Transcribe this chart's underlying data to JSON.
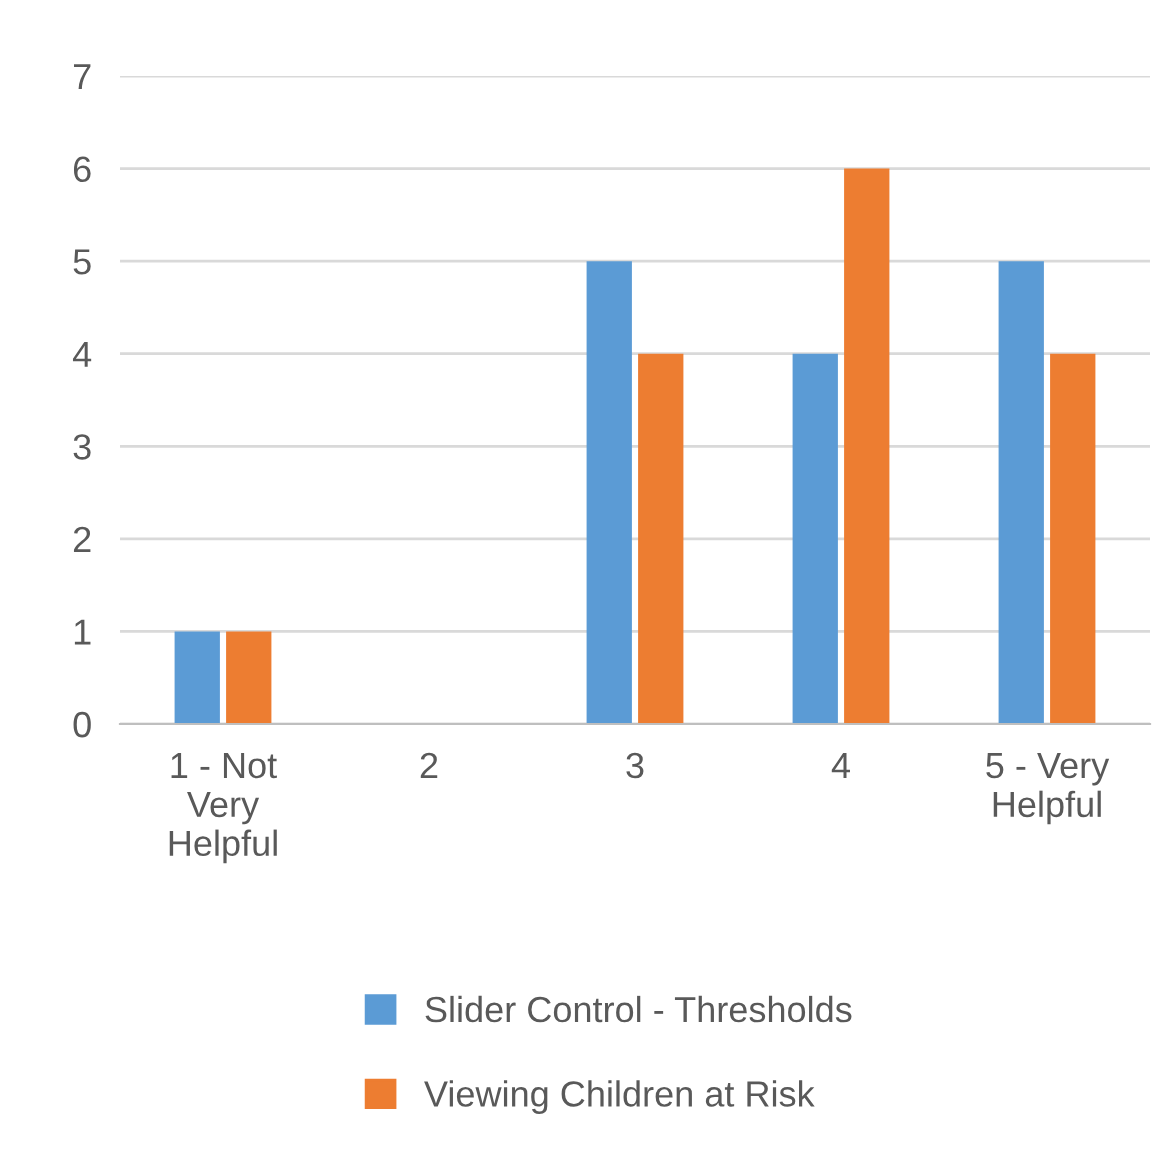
{
  "chart_data": {
    "type": "bar",
    "categories": [
      "1 - Not Very Helpful",
      "2",
      "3",
      "4",
      "5 - Very Helpful"
    ],
    "series": [
      {
        "name": "Slider Control - Thresholds",
        "color": "#5b9bd5",
        "values": [
          1,
          0,
          5,
          4,
          5
        ]
      },
      {
        "name": "Viewing Children at Risk",
        "color": "#ed7d31",
        "values": [
          1,
          0,
          4,
          6,
          4
        ]
      }
    ],
    "ylim": [
      0,
      7
    ],
    "yticks": [
      0,
      1,
      2,
      3,
      4,
      5,
      6,
      7
    ],
    "grid": "y",
    "legend": "bottom"
  }
}
